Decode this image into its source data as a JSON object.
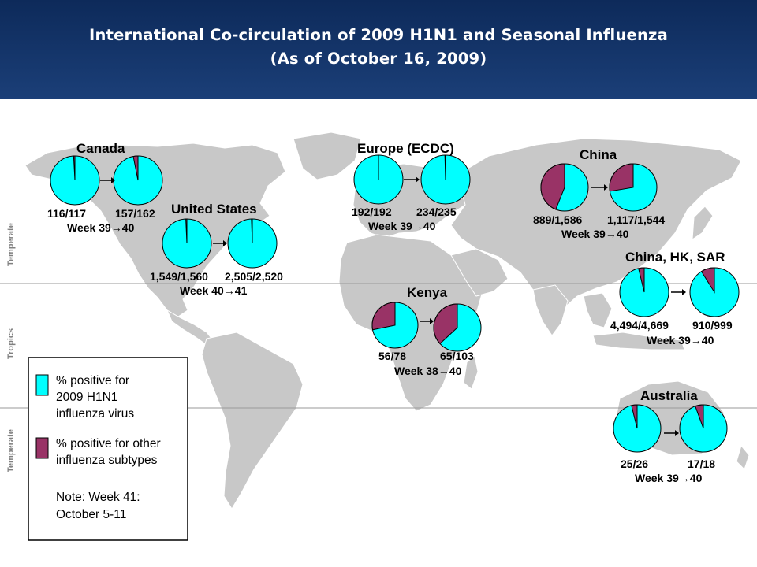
{
  "title": {
    "line1": "International Co-circulation of 2009 H1N1 and Seasonal Influenza",
    "line2": "(As of October 16, 2009)"
  },
  "colors": {
    "h1n1": "#00ffff",
    "other": "#993366",
    "land": "#c8c8c8",
    "header": "#153772"
  },
  "zones": [
    "Temperate",
    "Tropics",
    "Temperate"
  ],
  "legend": {
    "h1n1_lines": [
      "% positive for",
      "2009 H1N1",
      "influenza virus"
    ],
    "other_lines": [
      "% positive for other",
      "influenza subtypes"
    ],
    "note_lines": [
      "Note: Week 41:",
      "October 5-11"
    ]
  },
  "regions": [
    {
      "name": "Canada",
      "week": "Week 39→40",
      "pies": [
        {
          "label": "116/117",
          "positive": 116,
          "total": 117
        },
        {
          "label": "157/162",
          "positive": 157,
          "total": 162
        }
      ]
    },
    {
      "name": "United States",
      "week": "Week 40→41",
      "pies": [
        {
          "label": "1,549/1,560",
          "positive": 1549,
          "total": 1560
        },
        {
          "label": "2,505/2,520",
          "positive": 2505,
          "total": 2520
        }
      ]
    },
    {
      "name": "Europe (ECDC)",
      "week": "Week 39→40",
      "pies": [
        {
          "label": "192/192",
          "positive": 192,
          "total": 192
        },
        {
          "label": "234/235",
          "positive": 234,
          "total": 235
        }
      ]
    },
    {
      "name": "China",
      "week": "Week 39→40",
      "pies": [
        {
          "label": "889/1,586",
          "positive": 889,
          "total": 1586
        },
        {
          "label": "1,117/1,544",
          "positive": 1117,
          "total": 1544
        }
      ]
    },
    {
      "name": "Kenya",
      "week": "Week 38→40",
      "pies": [
        {
          "label": "56/78",
          "positive": 56,
          "total": 78
        },
        {
          "label": "65/103",
          "positive": 65,
          "total": 103
        }
      ]
    },
    {
      "name": "China, HK, SAR",
      "week": "Week 39→40",
      "pies": [
        {
          "label": "4,494/4,669",
          "positive": 4494,
          "total": 4669
        },
        {
          "label": "910/999",
          "positive": 910,
          "total": 999
        }
      ]
    },
    {
      "name": "Australia",
      "week": "Week 39→40",
      "pies": [
        {
          "label": "25/26",
          "positive": 25,
          "total": 26
        },
        {
          "label": "17/18",
          "positive": 17,
          "total": 18
        }
      ]
    }
  ]
}
